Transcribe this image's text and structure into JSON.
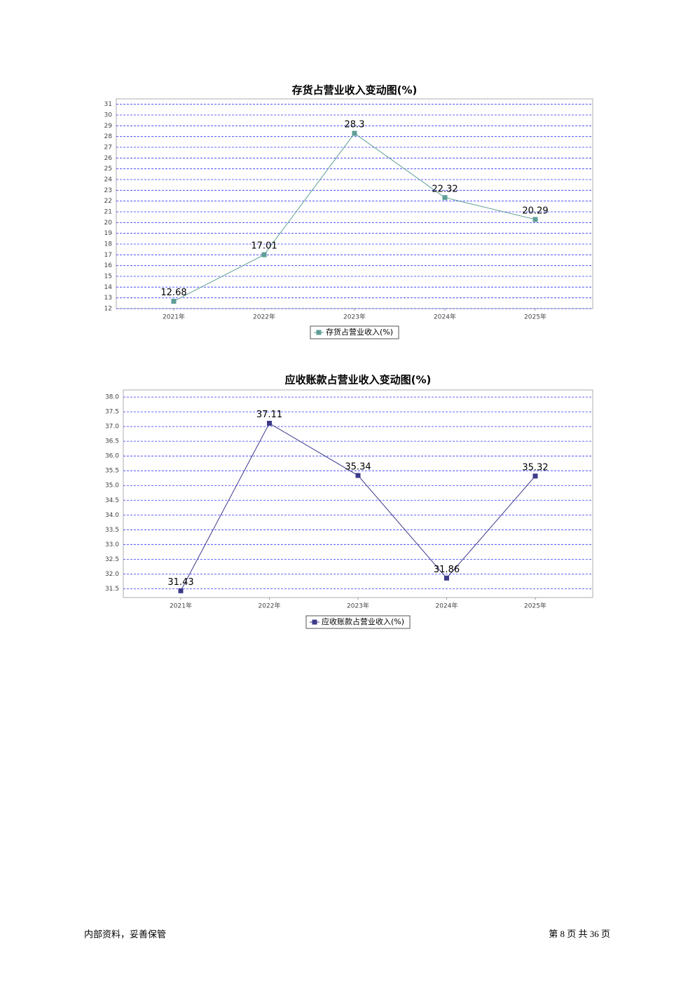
{
  "chart_data": [
    {
      "type": "line",
      "title": "存货占营业收入变动图(%)",
      "categories": [
        "2021年",
        "2022年",
        "2023年",
        "2024年",
        "2025年"
      ],
      "series": [
        {
          "name": "存货占营业收入(%)",
          "color": "#5f9e96",
          "values": [
            12.68,
            17.01,
            28.3,
            22.32,
            20.29
          ]
        }
      ],
      "ylim": [
        12,
        31.5
      ],
      "yticks": [
        12,
        13,
        14,
        15,
        16,
        17,
        18,
        19,
        20,
        21,
        22,
        23,
        24,
        25,
        26,
        27,
        28,
        29,
        30,
        31
      ],
      "grid": true
    },
    {
      "type": "line",
      "title": "应收账款占营业收入变动图(%)",
      "categories": [
        "2021年",
        "2022年",
        "2023年",
        "2024年",
        "2025年"
      ],
      "series": [
        {
          "name": "应收账款占营业收入(%)",
          "color": "#3c3a8a",
          "values": [
            31.43,
            37.11,
            35.34,
            31.86,
            35.32
          ]
        }
      ],
      "ylim": [
        31.2,
        38.24
      ],
      "yticks": [
        31.5,
        {
          "value": 32,
          "label": "32.0"
        },
        32.5,
        {
          "value": 33,
          "label": "33.0"
        },
        33.5,
        {
          "value": 34,
          "label": "34.0"
        },
        34.5,
        {
          "value": 35,
          "label": "35.0"
        },
        35.5,
        {
          "value": 36,
          "label": "36.0"
        },
        36.5,
        {
          "value": 37,
          "label": "37.0"
        },
        37.5,
        {
          "value": 38,
          "label": "38.0"
        }
      ],
      "grid": true
    }
  ],
  "footer": {
    "left": "内部资料，妥善保管",
    "right": "第 8 页 共 36 页"
  }
}
